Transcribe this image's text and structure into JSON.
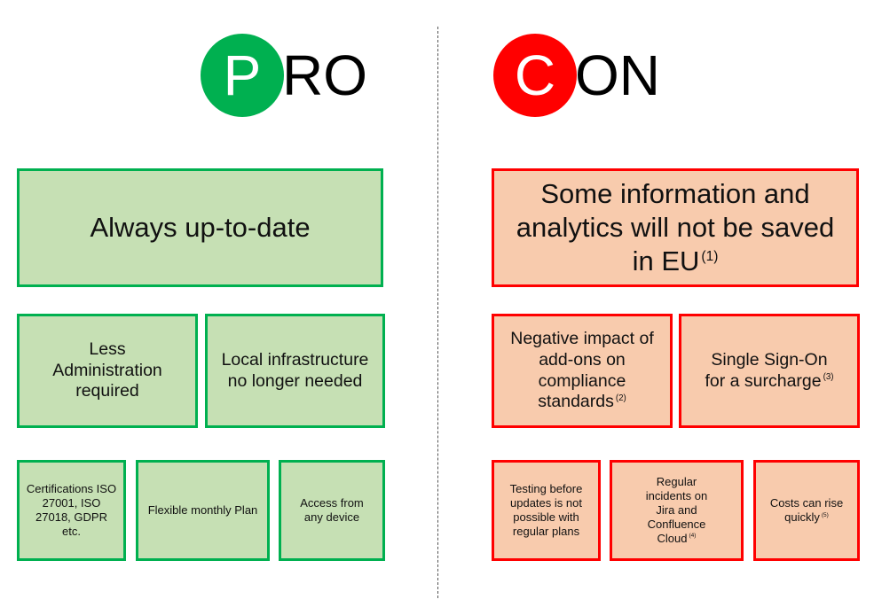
{
  "pro": {
    "letter": "P",
    "rest": "RO",
    "color": "#00b050",
    "box_fill": "#c6e0b4",
    "items": [
      {
        "text": "Always up-to-date"
      },
      {
        "text": "Less Administration required"
      },
      {
        "text": "Local infrastructure no longer needed"
      },
      {
        "text": "Certifications ISO 27001, ISO 27018, GDPR etc."
      },
      {
        "text": "Flexible monthly Plan"
      },
      {
        "text": "Access from any device"
      }
    ]
  },
  "con": {
    "letter": "C",
    "rest": "ON",
    "color": "#ff0000",
    "box_fill": "#f8cbad",
    "items": [
      {
        "text": "Some information and analytics will not be saved in EU",
        "note": "(1)"
      },
      {
        "text": "Negative impact of add-ons on compliance standards",
        "note": "(2)"
      },
      {
        "text": "Single Sign-On for a surcharge",
        "note": "(3)"
      },
      {
        "text": "Testing before updates is not possible with regular plans"
      },
      {
        "text": "Regular incidents on Jira and Confluence Cloud",
        "note": "(4)"
      },
      {
        "text": "Costs can rise quickly",
        "note": "(5)"
      }
    ]
  }
}
